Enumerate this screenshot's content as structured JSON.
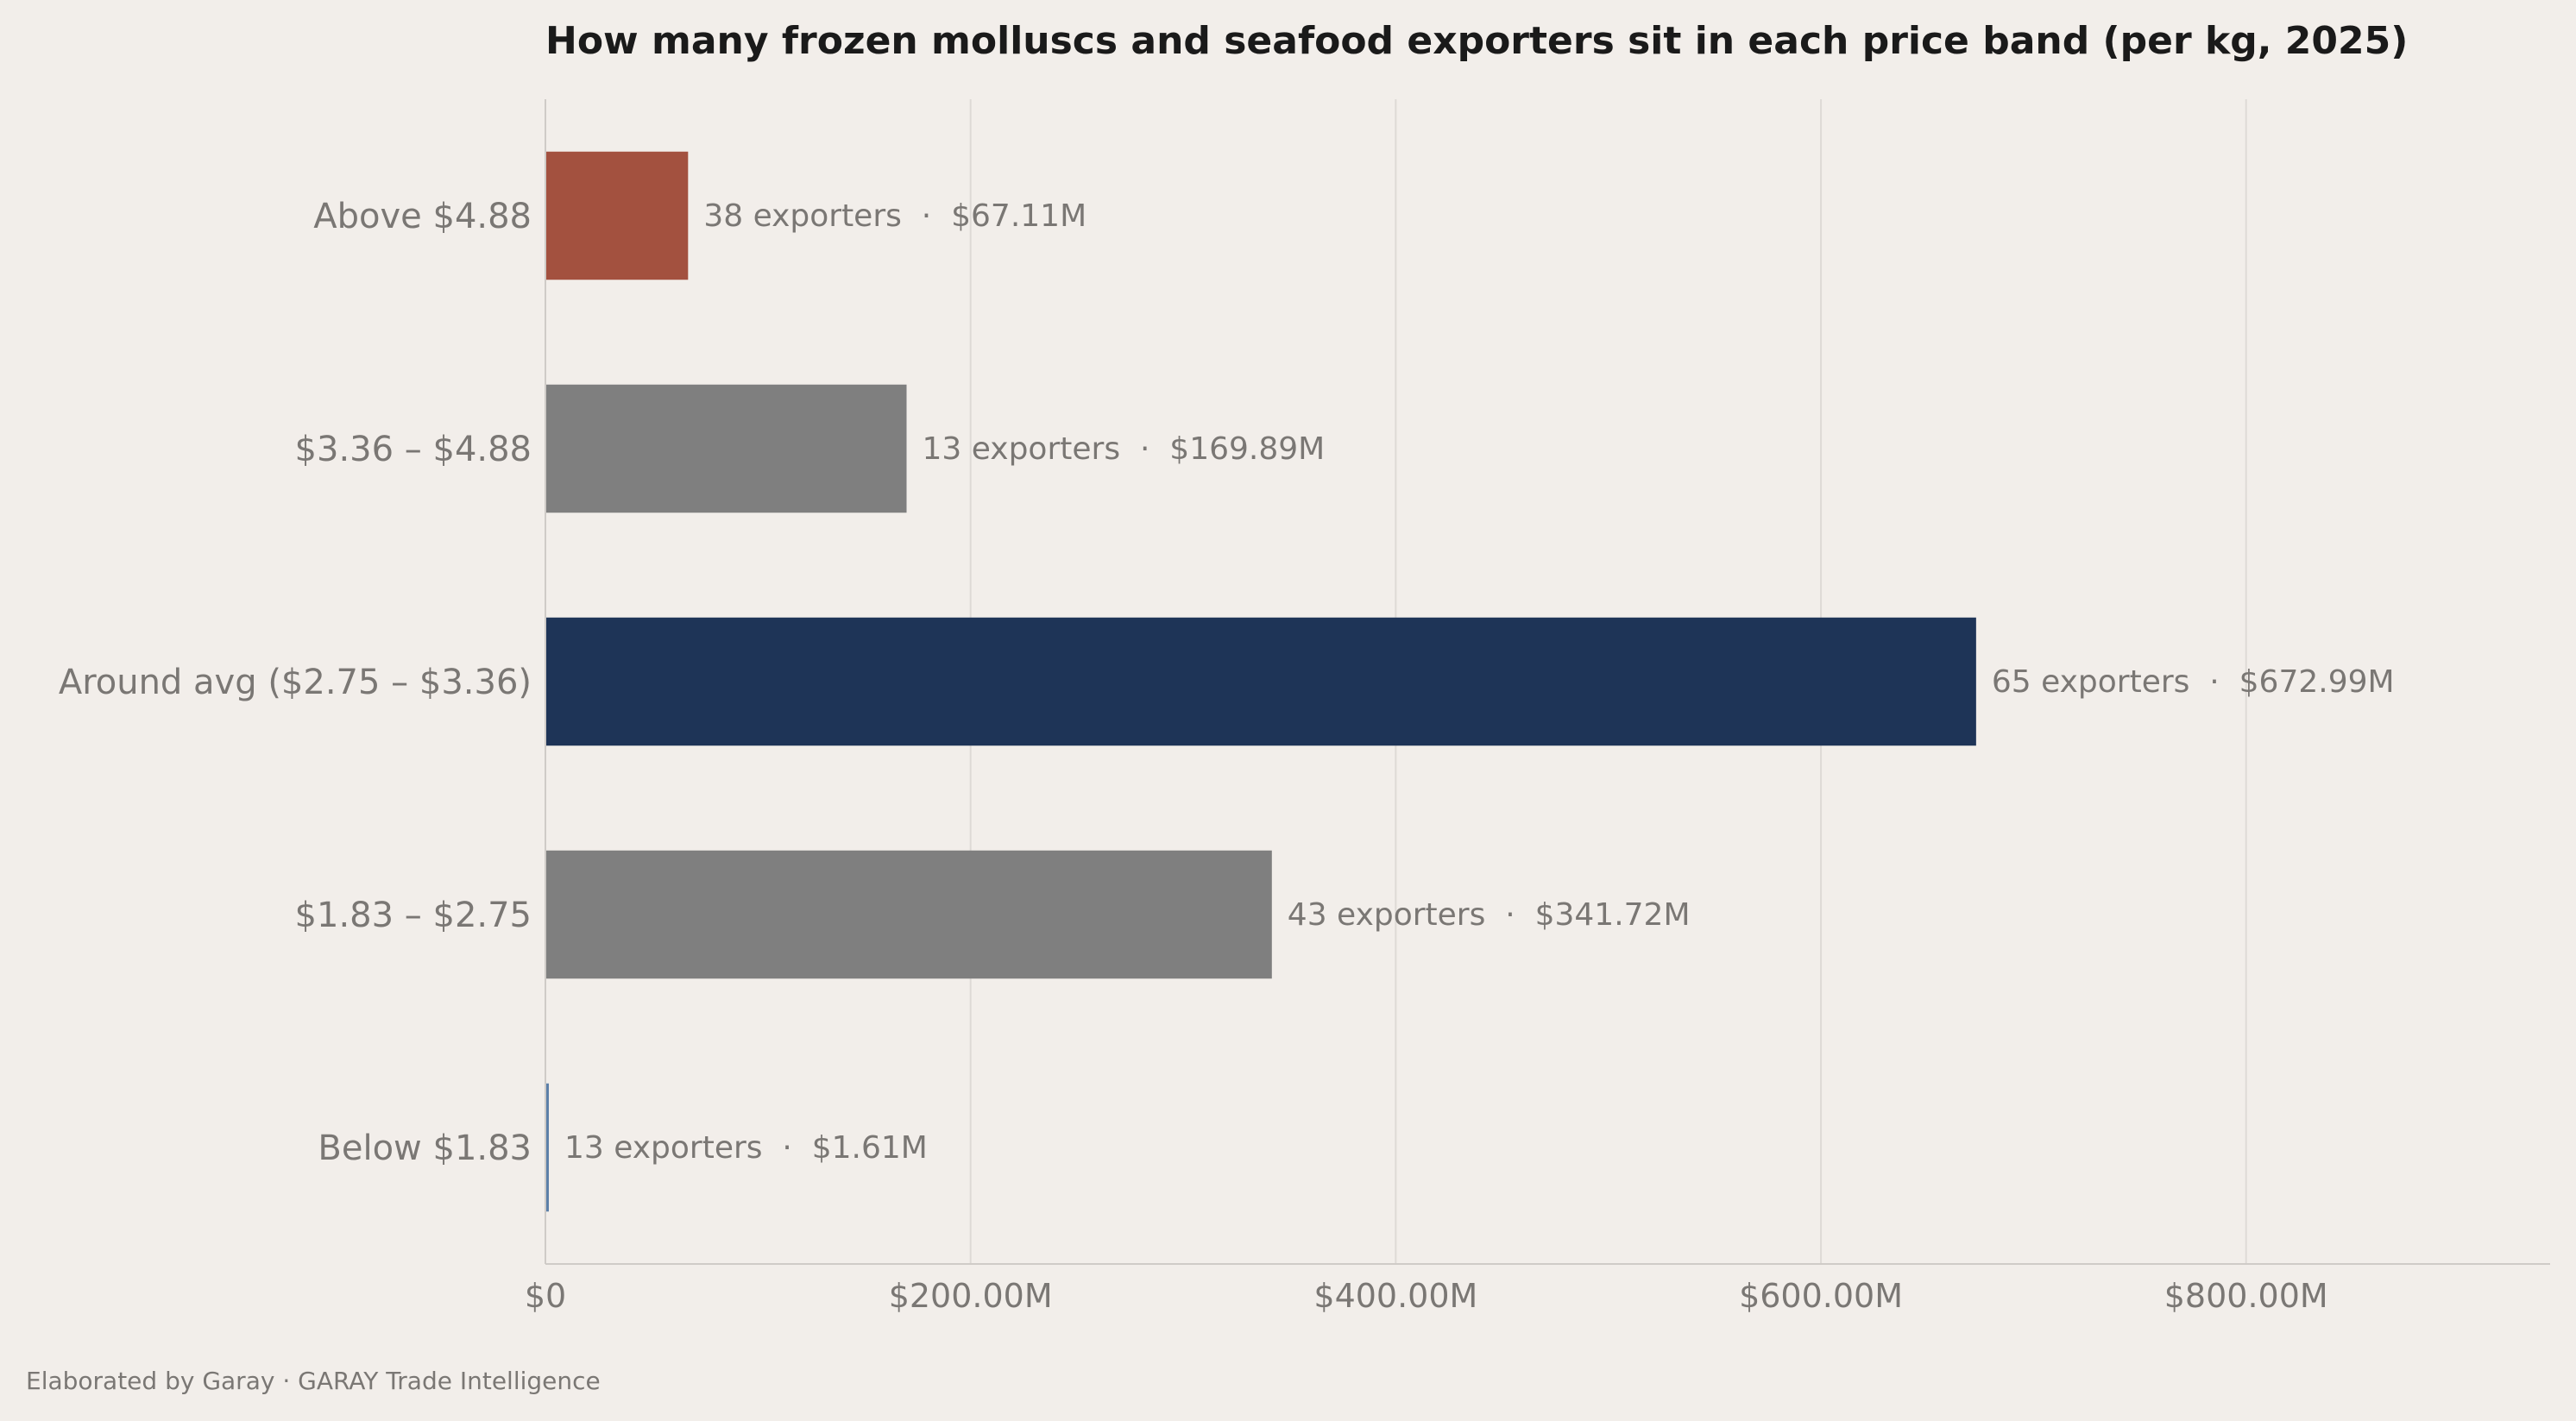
{
  "chart_data": {
    "type": "bar",
    "orientation": "horizontal",
    "title": "How many frozen molluscs and seafood exporters sit in each price band (per kg, 2025)",
    "xlabel": "",
    "ylabel": "",
    "categories": [
      "Above $4.88",
      "$3.36 – $4.88",
      "Around avg ($2.75 – $3.36)",
      "$1.83 – $2.75",
      "Below $1.83"
    ],
    "values": [
      67.11,
      169.89,
      672.99,
      341.72,
      1.61
    ],
    "value_unit": "$M",
    "exporters": [
      38,
      13,
      65,
      43,
      13
    ],
    "data_labels": [
      "38 exporters  ·  $67.11M",
      "13 exporters  ·  $169.89M",
      "65 exporters  ·  $672.99M",
      "43 exporters  ·  $341.72M",
      "13 exporters  ·  $1.61M"
    ],
    "bar_colors": [
      "#a3513f",
      "#7f7f7f",
      "#1e3457",
      "#7f7f7f",
      "#5b7fa8"
    ],
    "xlim": [
      0,
      943
    ],
    "xticks": [
      0,
      200,
      400,
      600,
      800
    ],
    "xtick_labels": [
      "$0",
      "$200.00M",
      "$400.00M",
      "$600.00M",
      "$800.00M"
    ],
    "grid": "vertical",
    "legend": "none"
  },
  "footer": {
    "credit": "Elaborated by Garay  ·  GARAY Trade Intelligence"
  },
  "colors": {
    "background": "#f2eeea",
    "grid": "#dedad6",
    "axis": "#cfcbc7",
    "text_muted": "#7a7774",
    "title": "#1a1a1a"
  }
}
